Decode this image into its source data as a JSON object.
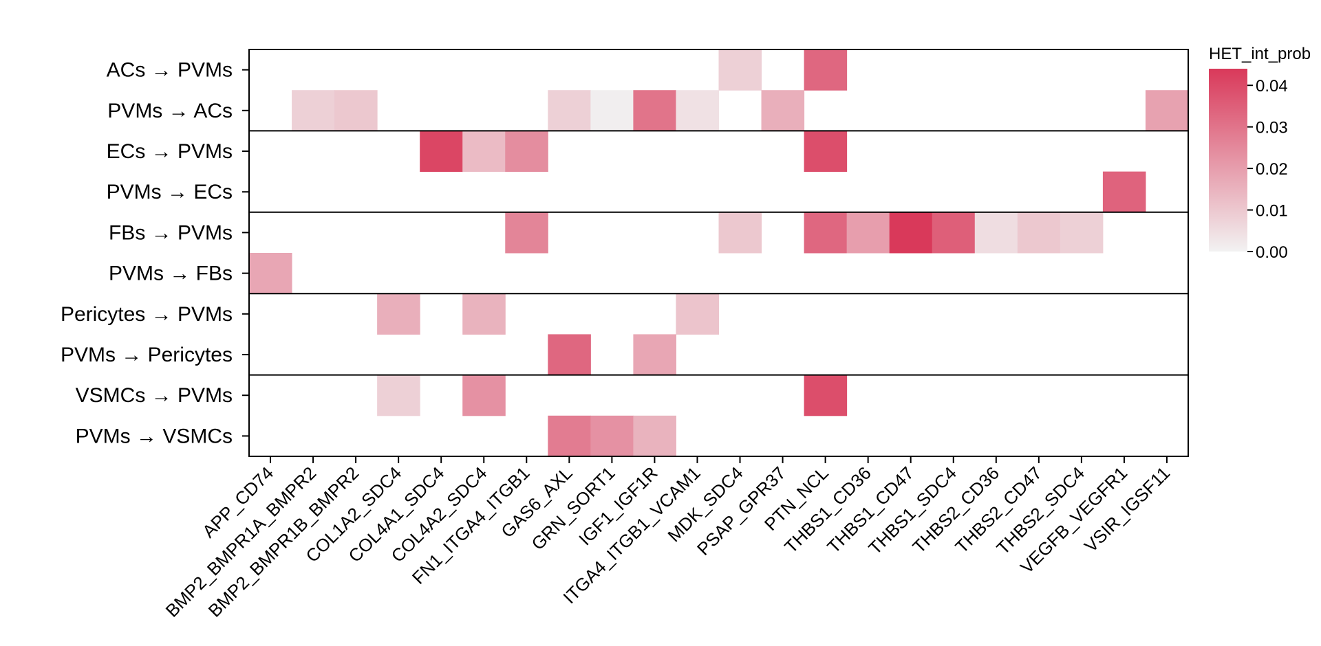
{
  "chart_data": {
    "type": "heatmap",
    "title": "",
    "xlabel": "",
    "ylabel": "",
    "rows": [
      "ACs → PVMs",
      "PVMs → ACs",
      "ECs → PVMs",
      "PVMs → ECs",
      "FBs → PVMs",
      "PVMs → FBs",
      "Pericytes → PVMs",
      "PVMs → Pericytes",
      "VSMCs → PVMs",
      "PVMs → VSMCs"
    ],
    "row_groups": [
      [
        "ACs → PVMs",
        "PVMs → ACs"
      ],
      [
        "ECs → PVMs",
        "PVMs → ECs"
      ],
      [
        "FBs → PVMs",
        "PVMs → FBs"
      ],
      [
        "Pericytes → PVMs",
        "PVMs → Pericytes"
      ],
      [
        "VSMCs → PVMs",
        "PVMs → VSMCs"
      ]
    ],
    "columns": [
      "APP_CD74",
      "BMP2_BMPR1A_BMPR2",
      "BMP2_BMPR1B_BMPR2",
      "COL1A2_SDC4",
      "COL4A1_SDC4",
      "COL4A2_SDC4",
      "FN1_ITGA4_ITGB1",
      "GAS6_AXL",
      "GRN_SORT1",
      "IGF1_IGF1R",
      "ITGA4_ITGB1_VCAM1",
      "MDK_SDC4",
      "PSAP_GPR37",
      "PTN_NCL",
      "THBS1_CD36",
      "THBS1_CD47",
      "THBS1_SDC4",
      "THBS2_CD36",
      "THBS2_CD47",
      "THBS2_SDC4",
      "VEGFB_VEGFR1",
      "VSIR_IGSF11"
    ],
    "cells": [
      {
        "row": 0,
        "col": 11,
        "value": 0.008
      },
      {
        "row": 0,
        "col": 13,
        "value": 0.033
      },
      {
        "row": 1,
        "col": 1,
        "value": 0.008
      },
      {
        "row": 1,
        "col": 2,
        "value": 0.01
      },
      {
        "row": 1,
        "col": 7,
        "value": 0.008
      },
      {
        "row": 1,
        "col": 8,
        "value": 0.001
      },
      {
        "row": 1,
        "col": 9,
        "value": 0.03
      },
      {
        "row": 1,
        "col": 10,
        "value": 0.004
      },
      {
        "row": 1,
        "col": 12,
        "value": 0.016
      },
      {
        "row": 1,
        "col": 21,
        "value": 0.019
      },
      {
        "row": 2,
        "col": 4,
        "value": 0.041
      },
      {
        "row": 2,
        "col": 5,
        "value": 0.013
      },
      {
        "row": 2,
        "col": 6,
        "value": 0.024
      },
      {
        "row": 2,
        "col": 13,
        "value": 0.039
      },
      {
        "row": 3,
        "col": 20,
        "value": 0.034
      },
      {
        "row": 4,
        "col": 6,
        "value": 0.026
      },
      {
        "row": 4,
        "col": 11,
        "value": 0.01
      },
      {
        "row": 4,
        "col": 13,
        "value": 0.033
      },
      {
        "row": 4,
        "col": 14,
        "value": 0.02
      },
      {
        "row": 4,
        "col": 15,
        "value": 0.044
      },
      {
        "row": 4,
        "col": 16,
        "value": 0.035
      },
      {
        "row": 4,
        "col": 17,
        "value": 0.005
      },
      {
        "row": 4,
        "col": 18,
        "value": 0.01
      },
      {
        "row": 4,
        "col": 19,
        "value": 0.008
      },
      {
        "row": 5,
        "col": 0,
        "value": 0.018
      },
      {
        "row": 6,
        "col": 3,
        "value": 0.016
      },
      {
        "row": 6,
        "col": 5,
        "value": 0.015
      },
      {
        "row": 6,
        "col": 10,
        "value": 0.011
      },
      {
        "row": 7,
        "col": 7,
        "value": 0.033
      },
      {
        "row": 7,
        "col": 9,
        "value": 0.018
      },
      {
        "row": 8,
        "col": 3,
        "value": 0.008
      },
      {
        "row": 8,
        "col": 5,
        "value": 0.023
      },
      {
        "row": 8,
        "col": 13,
        "value": 0.039
      },
      {
        "row": 9,
        "col": 7,
        "value": 0.028
      },
      {
        "row": 9,
        "col": 8,
        "value": 0.023
      },
      {
        "row": 9,
        "col": 9,
        "value": 0.015
      }
    ],
    "colorbar": {
      "title": "HET_int_prob",
      "min": 0.0,
      "max": 0.044,
      "ticks": [
        "0.00",
        "0.01",
        "0.02",
        "0.03",
        "0.04"
      ],
      "tick_values": [
        0.0,
        0.01,
        0.02,
        0.03,
        0.04
      ],
      "color_low": "#f2f2f2",
      "color_high": "#d9395a",
      "placement": "right"
    },
    "grid": false
  }
}
